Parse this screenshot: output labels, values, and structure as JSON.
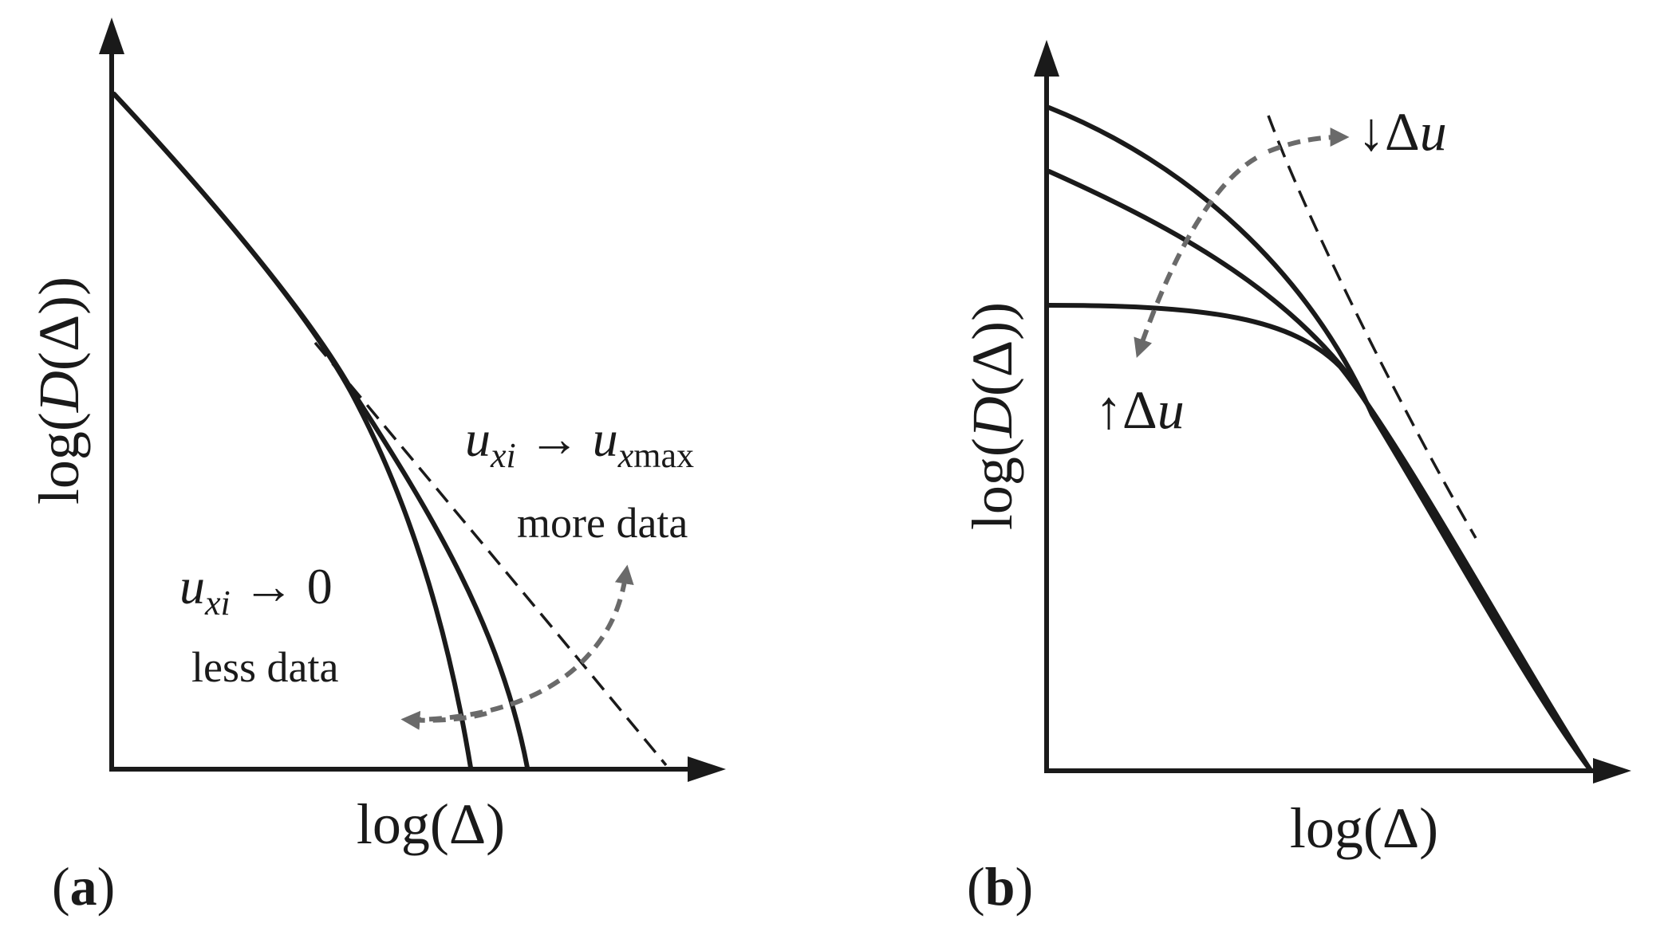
{
  "panel_a": {
    "label_open": "(",
    "label_letter": "a",
    "label_close": ")",
    "xlabel": "log(Δ)",
    "ylabel_pre": "log(",
    "ylabel_D": "D",
    "ylabel_post": "(Δ))",
    "annotation_low_var": "u",
    "annotation_low_sub": "xi",
    "annotation_low_rest": " → 0",
    "annotation_low_caption": "less data",
    "annotation_high_var": "u",
    "annotation_high_sub": "xi",
    "annotation_high_arrow": " → ",
    "annotation_high_var2": "u",
    "annotation_high_sub2": "x",
    "annotation_high_sub2b": "max",
    "annotation_high_caption": "more data"
  },
  "panel_b": {
    "label_open": "(",
    "label_letter": "b",
    "label_close": ")",
    "xlabel": "log(Δ)",
    "ylabel_pre": "log(",
    "ylabel_D": "D",
    "ylabel_post": "(Δ))",
    "annotation_down_arrow": "↓",
    "annotation_down_text": "Δ",
    "annotation_down_var": "u",
    "annotation_up_arrow": "↑",
    "annotation_up_text": "Δ",
    "annotation_up_var": "u"
  },
  "colors": {
    "line": "#1a1a1a",
    "gray_arrow": "#6a6a6a",
    "background": "#ffffff"
  }
}
